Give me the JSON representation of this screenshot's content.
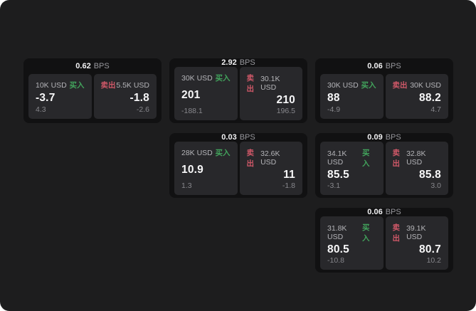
{
  "labels": {
    "bps_unit": "BPS",
    "buy": "买入",
    "sell": "卖出"
  },
  "colors": {
    "page_background": "#1d1d1e",
    "card_background": "#111112",
    "panel_background": "#28282b",
    "buy_green": "#42a35c",
    "sell_red": "#cf5868",
    "value_white": "#f7f7f8",
    "label_gray": "#b4b4b8",
    "sub_gray": "#87878c"
  },
  "cards": [
    {
      "bps": "0.62",
      "buy": {
        "amount": "10K USD",
        "price": "-3.7",
        "delta": "4.3"
      },
      "sell": {
        "amount": "5.5K USD",
        "price": "-1.8",
        "delta": "-2.6"
      }
    },
    {
      "bps": "2.92",
      "buy": {
        "amount": "30K USD",
        "price": "201",
        "delta": "-188.1"
      },
      "sell": {
        "amount": "30.1K USD",
        "price": "210",
        "delta": "196.5"
      }
    },
    {
      "bps": "0.06",
      "buy": {
        "amount": "30K USD",
        "price": "88",
        "delta": "-4.9"
      },
      "sell": {
        "amount": "30K USD",
        "price": "88.2",
        "delta": "4.7"
      }
    },
    {
      "bps": "0.03",
      "buy": {
        "amount": "28K USD",
        "price": "10.9",
        "delta": "1.3"
      },
      "sell": {
        "amount": "32.6K USD",
        "price": "11",
        "delta": "-1.8"
      }
    },
    {
      "bps": "0.09",
      "buy": {
        "amount": "34.1K USD",
        "price": "85.5",
        "delta": "-3.1"
      },
      "sell": {
        "amount": "32.8K USD",
        "price": "85.8",
        "delta": "3.0"
      }
    },
    {
      "bps": "0.06",
      "buy": {
        "amount": "31.8K USD",
        "price": "80.5",
        "delta": "-10.8"
      },
      "sell": {
        "amount": "39.1K USD",
        "price": "80.7",
        "delta": "10.2"
      }
    }
  ]
}
